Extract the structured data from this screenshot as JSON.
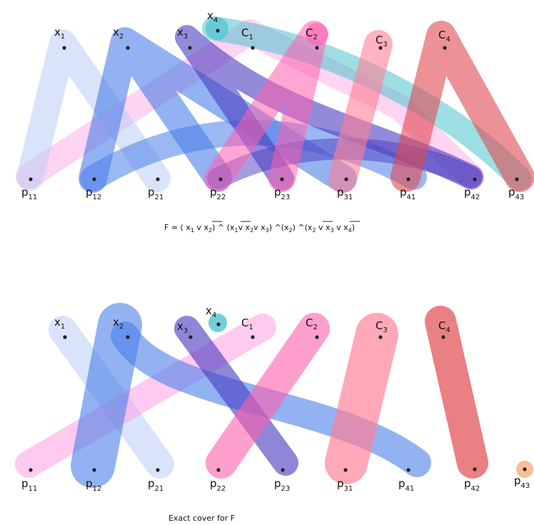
{
  "formula": {
    "parts": [
      "F = ( x",
      "1",
      " v ",
      "x",
      "2",
      ") ^ (",
      "x",
      "1",
      "v  x",
      "2",
      "v  x",
      "3",
      ") ^(x",
      "2",
      ") ^(",
      "x",
      "2",
      "  v   ",
      "x",
      "3",
      "  v  x",
      "4",
      ")"
    ]
  },
  "caption": "Exact cover for F",
  "labels": {
    "x1": {
      "base": "x",
      "sub": "1"
    },
    "x2": {
      "base": "x",
      "sub": "2"
    },
    "x3": {
      "base": "x",
      "sub": "3"
    },
    "x4": {
      "base": "x",
      "sub": "4"
    },
    "C1": {
      "base": "C",
      "sub": "1"
    },
    "C2": {
      "base": "C",
      "sub": "2"
    },
    "C3": {
      "base": "C",
      "sub": "3"
    },
    "C4": {
      "base": "C",
      "sub": "4"
    },
    "p11": {
      "base": "p",
      "sub": "11"
    },
    "p12": {
      "base": "p",
      "sub": "12"
    },
    "p21": {
      "base": "p",
      "sub": "21"
    },
    "p22": {
      "base": "p",
      "sub": "22"
    },
    "p23": {
      "base": "p",
      "sub": "23"
    },
    "p31": {
      "base": "p",
      "sub": "31"
    },
    "p41": {
      "base": "p",
      "sub": "41"
    },
    "p42": {
      "base": "p",
      "sub": "42"
    },
    "p43": {
      "base": "p",
      "sub": "43"
    }
  },
  "colors": {
    "x1": "#b9cdf5",
    "x2": "#4a7ee8",
    "x3": "#4b3cc0",
    "x4": "#4fc3d0",
    "C1": "#ff9ee2",
    "C2": "#ff5fae",
    "C3": "#ff7f95",
    "C4": "#e04a50",
    "p43_highlight": "#f7b88a"
  }
}
